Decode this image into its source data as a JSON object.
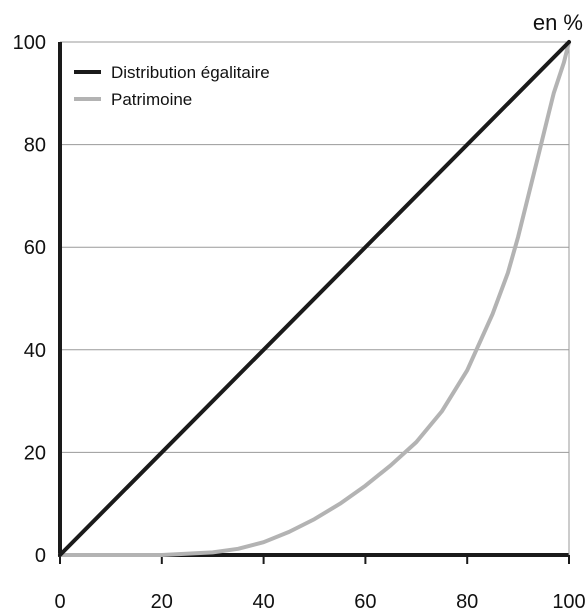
{
  "chart_data": {
    "type": "line",
    "unit_label": "en %",
    "xlim": [
      0,
      100
    ],
    "ylim": [
      0,
      100
    ],
    "x_ticks": [
      "0",
      "20",
      "40",
      "60",
      "80",
      "100"
    ],
    "y_ticks": [
      "0",
      "20",
      "40",
      "60",
      "80",
      "100"
    ],
    "grid": "horizontal",
    "legend_position": "top-left",
    "series": [
      {
        "name": "Distribution égalitaire",
        "color": "#1a1a1a",
        "x": [
          0,
          100
        ],
        "y": [
          0,
          100
        ]
      },
      {
        "name": "Patrimoine",
        "color": "#b3b3b3",
        "x": [
          0,
          10,
          20,
          30,
          35,
          40,
          45,
          50,
          55,
          60,
          65,
          70,
          75,
          80,
          85,
          88,
          90,
          92,
          94,
          96,
          97,
          98,
          99,
          100
        ],
        "y": [
          0,
          0,
          0,
          0.5,
          1.2,
          2.5,
          4.5,
          7,
          10,
          13.5,
          17.5,
          22,
          28,
          36,
          47,
          55,
          62,
          70,
          78,
          86,
          90,
          93,
          96,
          100
        ]
      }
    ]
  }
}
